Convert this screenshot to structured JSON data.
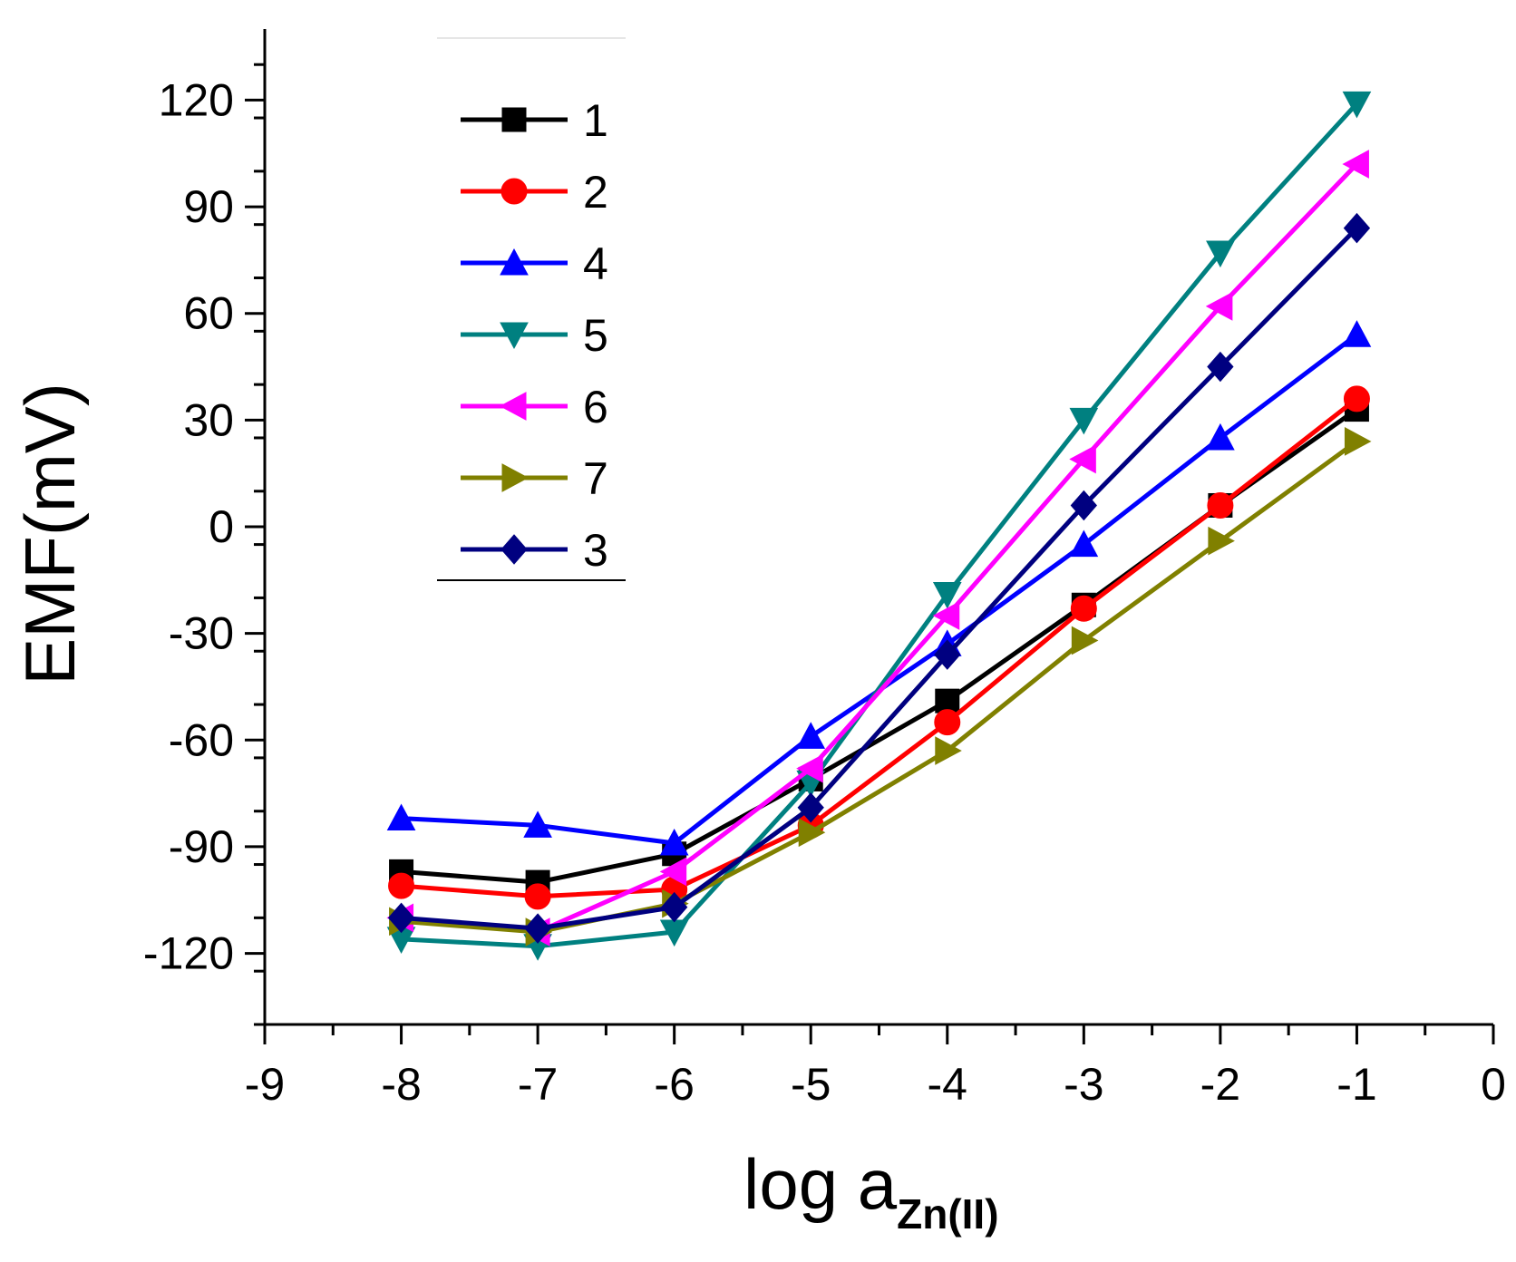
{
  "chart_data": {
    "type": "line",
    "title": "",
    "xlabel": "log a",
    "xlabel_subscript": "Zn(II)",
    "ylabel": "EMF(mV)",
    "xlim": [
      -9,
      0
    ],
    "ylim": [
      -140,
      140
    ],
    "x_ticks": [
      -9,
      -8,
      -7,
      -6,
      -5,
      -4,
      -3,
      -2,
      -1,
      0
    ],
    "x_tick_labels": [
      "-9",
      "-8",
      "-7",
      "-6",
      "-5",
      "-4",
      "-3",
      "-2",
      "-1",
      "0"
    ],
    "y_ticks": [
      -120,
      -90,
      -60,
      -30,
      0,
      30,
      60,
      90,
      120
    ],
    "y_tick_labels": [
      "-120",
      "-90",
      "-60",
      "-30",
      "0",
      "30",
      "60",
      "90",
      "120"
    ],
    "grid": false,
    "legend_position": "top-left",
    "x": [
      -8,
      -7,
      -6,
      -5,
      -4,
      -3,
      -2,
      -1
    ],
    "series": [
      {
        "name": "1",
        "color": "#000000",
        "marker": "square",
        "values": [
          -97,
          -100,
          -92,
          -71,
          -49,
          -22,
          6,
          33
        ]
      },
      {
        "name": "2",
        "color": "#ff0000",
        "marker": "circle",
        "values": [
          -101,
          -104,
          -102,
          -84,
          -55,
          -23,
          6,
          36
        ]
      },
      {
        "name": "4",
        "color": "#0000ff",
        "marker": "triangle-up",
        "values": [
          -82,
          -84,
          -89,
          -59,
          -33,
          -5,
          25,
          54
        ]
      },
      {
        "name": "5",
        "color": "#008080",
        "marker": "triangle-down",
        "values": [
          -116,
          -118,
          -114,
          -72,
          -19,
          30,
          77,
          119
        ]
      },
      {
        "name": "6",
        "color": "#ff00ff",
        "marker": "triangle-left",
        "values": [
          -110,
          -114,
          -97,
          -68,
          -25,
          19,
          62,
          102
        ]
      },
      {
        "name": "7",
        "color": "#808000",
        "marker": "triangle-right",
        "values": [
          -111,
          -114,
          -106,
          -86,
          -63,
          -32,
          -4,
          24
        ]
      },
      {
        "name": "3",
        "color": "#000080",
        "marker": "diamond",
        "values": [
          -110,
          -113,
          -107,
          -79,
          -36,
          6,
          45,
          84
        ]
      }
    ]
  }
}
